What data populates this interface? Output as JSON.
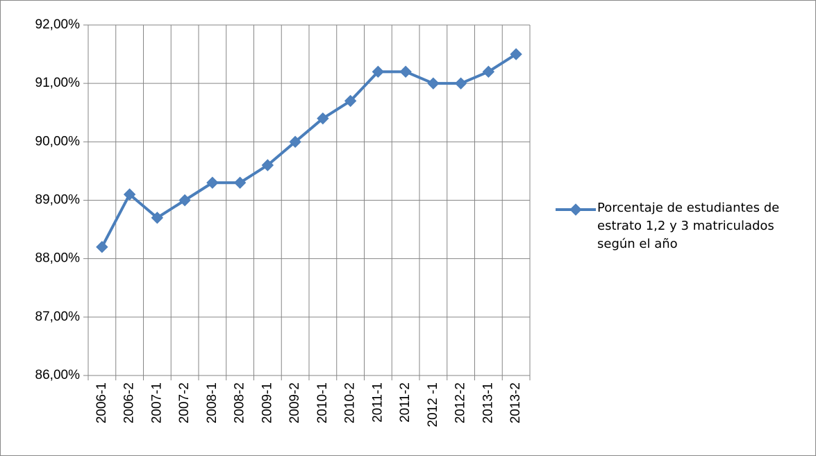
{
  "chart_data": {
    "type": "line",
    "categories": [
      "2006-1",
      "2006-2",
      "2007-1",
      "2007-2",
      "2008-1",
      "2008-2",
      "2009-1",
      "2009-2",
      "2010-1",
      "2010-2",
      "2011-1",
      "2011-2",
      "2012 -1",
      "2012-2",
      "2013-1",
      "2013-2"
    ],
    "series": [
      {
        "name": "Porcentaje de estudiantes de estrato 1,2 y 3 matriculados según el año",
        "color": "#4a7ebb",
        "values": [
          88.2,
          89.1,
          88.7,
          89.0,
          89.3,
          89.3,
          89.6,
          90.0,
          90.4,
          90.7,
          91.2,
          91.2,
          91.0,
          91.0,
          91.2,
          91.5
        ]
      }
    ],
    "ylim": [
      86,
      92
    ],
    "yticks": [
      {
        "value": 86,
        "label": "86,00%"
      },
      {
        "value": 87,
        "label": "87,00%"
      },
      {
        "value": 88,
        "label": "88,00%"
      },
      {
        "value": 89,
        "label": "89,00%"
      },
      {
        "value": 90,
        "label": "90,00%"
      },
      {
        "value": 91,
        "label": "91,00%"
      },
      {
        "value": 92,
        "label": "92,00%"
      }
    ],
    "grid": true,
    "legend": "right"
  }
}
